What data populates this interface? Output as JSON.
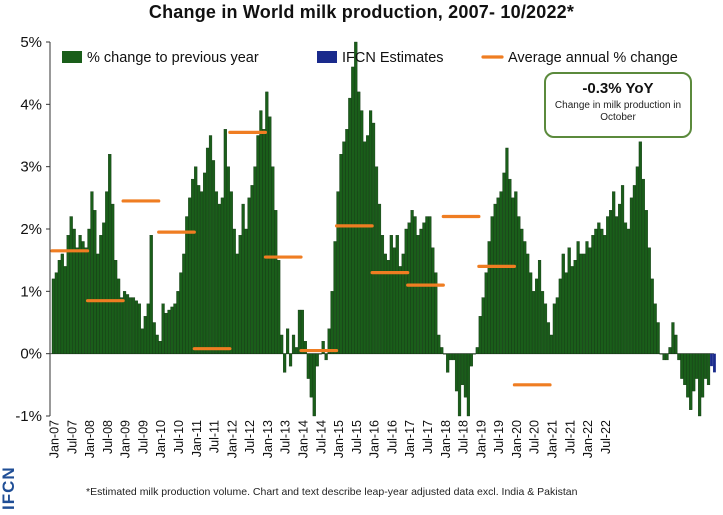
{
  "chart_data": {
    "type": "bar",
    "title": "Change in World milk production, 2007- 10/2022*",
    "ytick_labels": [
      "-1%",
      "0%",
      "1%",
      "2%",
      "3%",
      "4%",
      "5%"
    ],
    "ylim": [
      -1,
      5
    ],
    "grid": false,
    "legend_placement": "top",
    "legend": [
      {
        "label": "% change to previous year",
        "color": "#1a5e1a",
        "kind": "bar"
      },
      {
        "label": "IFCN Estimates",
        "color": "#1a2a8c",
        "kind": "bar"
      },
      {
        "label": "Average annual % change",
        "color": "#ef7d22",
        "kind": "line"
      }
    ],
    "xtick_labels": [
      "Jan-07",
      "Jul-07",
      "Jan-08",
      "Jul-08",
      "Jan-09",
      "Jul-09",
      "Jan-10",
      "Jul-10",
      "Jan-11",
      "Jul-11",
      "Jan-12",
      "Jul-12",
      "Jan-13",
      "Jul-13",
      "Jan-14",
      "Jul-14",
      "Jan-15",
      "Jul-15",
      "Jan-16",
      "Jul-16",
      "Jan-17",
      "Jul-17",
      "Jan-18",
      "Jul-18",
      "Jan-19",
      "Jul-19",
      "Jan-20",
      "Jul-20",
      "Jan-21",
      "Jul-21",
      "Jan-22",
      "Jul-22"
    ],
    "series": [
      {
        "name": "% change to previous year",
        "color": "#1a5e1a",
        "values": [
          1.2,
          1.3,
          1.5,
          1.6,
          1.4,
          1.9,
          2.2,
          2.0,
          1.7,
          1.9,
          1.8,
          1.7,
          2.0,
          2.6,
          2.3,
          1.6,
          1.9,
          2.1,
          2.6,
          3.2,
          2.4,
          1.5,
          1.2,
          0.9,
          1.0,
          0.95,
          0.9,
          0.9,
          0.85,
          0.8,
          0.4,
          0.6,
          0.8,
          1.9,
          0.5,
          0.3,
          0.2,
          0.8,
          0.65,
          0.7,
          0.75,
          0.8,
          1.0,
          1.3,
          1.6,
          2.2,
          2.5,
          2.8,
          3.0,
          2.7,
          2.6,
          2.9,
          3.3,
          3.5,
          3.1,
          2.6,
          2.4,
          2.5,
          3.6,
          3.0,
          2.6,
          2.0,
          1.6,
          1.9,
          2.4,
          2.0,
          2.5,
          2.7,
          3.0,
          3.5,
          3.9,
          3.6,
          4.2,
          3.8,
          3.0,
          2.3,
          1.5,
          0.3,
          -0.3,
          0.4,
          -0.2,
          0.3,
          0.1,
          0.7,
          0.7,
          0.2,
          -0.4,
          -0.7,
          -1.0,
          -0.2,
          0.0,
          0.2,
          -0.1,
          0.4,
          1.0,
          1.8,
          2.6,
          3.2,
          3.4,
          3.6,
          4.1,
          4.6,
          5.0,
          4.2,
          3.9,
          3.4,
          3.5,
          3.9,
          3.7,
          3.0,
          2.4,
          1.9,
          1.6,
          1.5,
          1.9,
          1.7,
          1.9,
          1.4,
          1.6,
          2.0,
          2.1,
          2.3,
          2.2,
          1.9,
          2.0,
          2.1,
          2.2,
          2.2,
          1.7,
          1.3,
          0.3,
          0.1,
          0.0,
          -0.3,
          -0.1,
          -0.1,
          -0.6,
          -1.0,
          -0.5,
          -0.7,
          -1.0,
          -0.2,
          0.0,
          0.1,
          0.6,
          0.9,
          1.3,
          1.8,
          2.2,
          2.4,
          2.5,
          2.6,
          2.9,
          3.3,
          2.8,
          2.5,
          2.6,
          2.2,
          2.0,
          1.8,
          1.6,
          1.3,
          1.0,
          1.2,
          1.5,
          1.0,
          0.8,
          0.5,
          0.3,
          0.8,
          0.9,
          1.2,
          1.6,
          1.3,
          1.7,
          1.4,
          1.5,
          1.8,
          1.6,
          1.6,
          1.8,
          1.7,
          1.9,
          2.0,
          2.1,
          2.0,
          1.9,
          2.2,
          2.3,
          2.6,
          2.2,
          2.4,
          2.7,
          2.1,
          2.0,
          2.5,
          2.7,
          3.0,
          3.4,
          2.8,
          2.3,
          1.7,
          1.2,
          0.8,
          0.5,
          0.0,
          -0.1,
          -0.1,
          0.1,
          0.5,
          0.3,
          -0.1,
          -0.4,
          -0.5,
          -0.7,
          -0.9,
          -0.6,
          -0.4,
          -1.0,
          -0.7,
          -0.4,
          -0.5
        ]
      },
      {
        "name": "IFCN Estimates",
        "color": "#1a2a8c",
        "values": [
          -0.2,
          -0.3
        ]
      },
      {
        "name": "Average annual % change",
        "color": "#ef7d22",
        "values": [
          1.65,
          0.85,
          2.45,
          1.95,
          0.08,
          3.55,
          1.55,
          0.05,
          2.05,
          1.3,
          1.1,
          2.2,
          1.4,
          -0.5
        ]
      }
    ],
    "callout": {
      "value": "-0.3% YoY",
      "text": "Change in milk production in October"
    }
  },
  "footnote": "*Estimated milk production volume. Chart and text describe leap-year adjusted data excl. India & Pakistan",
  "brand": "IFCN"
}
